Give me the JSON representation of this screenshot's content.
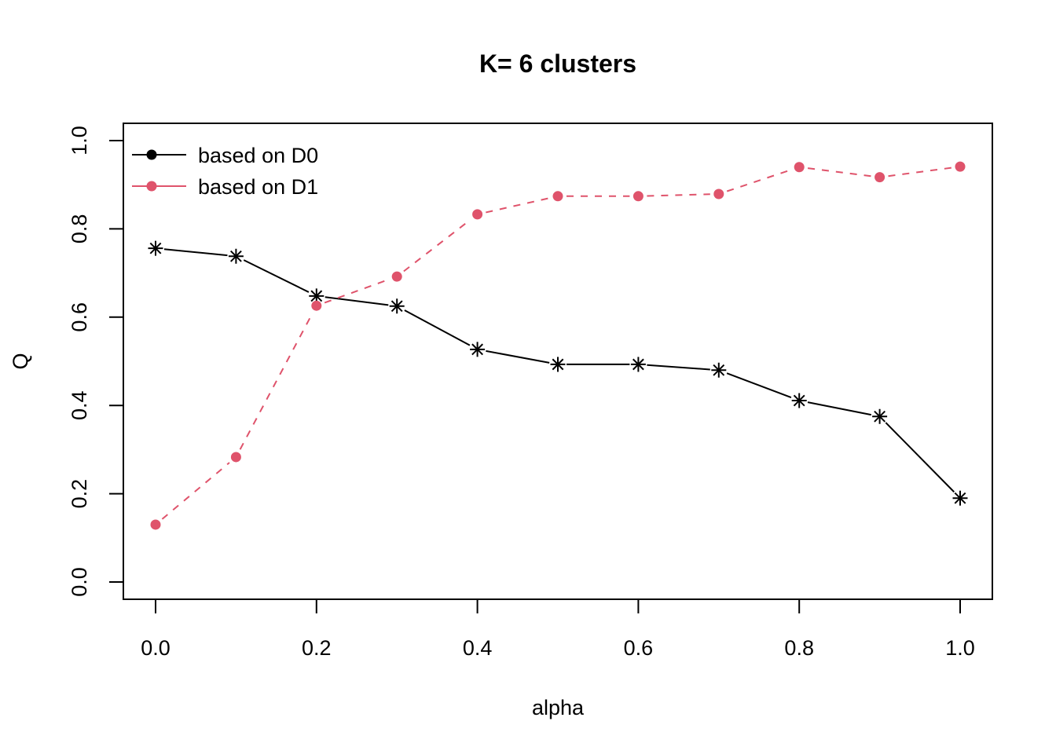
{
  "chart_data": {
    "type": "line",
    "title": "K= 6 clusters",
    "xlabel": "alpha",
    "ylabel": "Q",
    "xlim": [
      0.0,
      1.0
    ],
    "ylim": [
      0.0,
      1.0
    ],
    "x_ticks": [
      "0.0",
      "0.2",
      "0.4",
      "0.6",
      "0.8",
      "1.0"
    ],
    "y_ticks": [
      "0.0",
      "0.2",
      "0.4",
      "0.6",
      "0.8",
      "1.0"
    ],
    "grid": false,
    "legend_position": "top-left",
    "x": [
      0.0,
      0.1,
      0.2,
      0.3,
      0.4,
      0.5,
      0.6,
      0.7,
      0.8,
      0.9,
      1.0
    ],
    "series": [
      {
        "name": "based on D0",
        "color": "#000000",
        "line_style": "solid",
        "marker": "asterisk",
        "legend_marker": "filled-circle",
        "values": [
          0.756,
          0.738,
          0.648,
          0.625,
          0.527,
          0.493,
          0.493,
          0.48,
          0.411,
          0.375,
          0.19
        ]
      },
      {
        "name": "based on D1",
        "color": "#DF536B",
        "line_style": "dashed",
        "marker": "filled-circle",
        "legend_marker": "filled-circle",
        "values": [
          0.13,
          0.283,
          0.626,
          0.692,
          0.833,
          0.874,
          0.874,
          0.879,
          0.94,
          0.917,
          0.941
        ]
      }
    ]
  }
}
